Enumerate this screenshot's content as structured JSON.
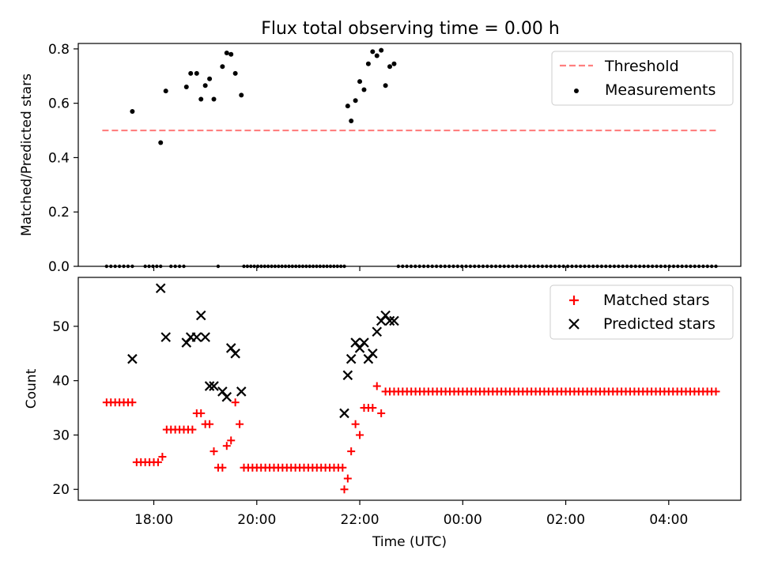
{
  "title": "Flux total observing time = 0.00 h",
  "colors": {
    "threshold": "#ff7f7f",
    "measurements": "#000000",
    "matched": "#ff0000",
    "predicted": "#000000"
  },
  "chart_data": [
    {
      "type": "scatter",
      "title": "Flux total observing time = 0.00 h",
      "xlabel": "",
      "ylabel": "Matched/Predicted stars",
      "ylim": [
        0,
        0.82
      ],
      "yticks": [
        0.0,
        0.2,
        0.4,
        0.6,
        0.8
      ],
      "ytick_labels": [
        "0.0",
        "0.2",
        "0.4",
        "0.6",
        "0.8"
      ],
      "legend_position": "top-right",
      "series": [
        {
          "name": "Threshold",
          "style": "dashed-line",
          "x": [
            "17:00",
            "04:55"
          ],
          "y": [
            0.5,
            0.5
          ]
        },
        {
          "name": "Measurements",
          "style": "dot",
          "x": [
            "17:35",
            "18:08",
            "18:14",
            "18:38",
            "18:43",
            "18:50",
            "18:55",
            "19:00",
            "19:05",
            "19:10",
            "19:20",
            "19:25",
            "19:30",
            "19:35",
            "19:42",
            "21:46",
            "21:50",
            "21:55",
            "22:00",
            "22:05",
            "22:10",
            "22:15",
            "22:20",
            "22:25",
            "22:30",
            "22:35",
            "22:40"
          ],
          "y": [
            0.57,
            0.455,
            0.645,
            0.66,
            0.71,
            0.71,
            0.615,
            0.665,
            0.69,
            0.615,
            0.735,
            0.785,
            0.78,
            0.71,
            0.63,
            0.59,
            0.535,
            0.61,
            0.68,
            0.65,
            0.745,
            0.79,
            0.775,
            0.795,
            0.665,
            0.735,
            0.745
          ]
        },
        {
          "name": "",
          "style": "dot",
          "x_ranges": [
            [
              "17:05",
              "17:35",
              7
            ],
            [
              "17:50",
              "18:08",
              5
            ],
            [
              "18:20",
              "18:35",
              4
            ],
            [
              "19:15",
              "19:15",
              1
            ],
            [
              "19:45",
              "21:42",
              30
            ],
            [
              "22:45",
              "04:55",
              76
            ]
          ],
          "y": 0
        }
      ]
    },
    {
      "type": "scatter",
      "xlabel": "Time (UTC)",
      "ylabel": "Count",
      "ylim": [
        18,
        59
      ],
      "yticks": [
        20,
        30,
        40,
        50
      ],
      "ytick_labels": [
        "20",
        "30",
        "40",
        "50"
      ],
      "xticks": [
        "18:00",
        "20:00",
        "22:00",
        "00:00",
        "02:00",
        "04:00"
      ],
      "xlim": [
        "16:32",
        "05:24"
      ],
      "legend_position": "top-right",
      "series": [
        {
          "name": "Matched stars",
          "style": "plus",
          "x": [
            "17:05",
            "17:10",
            "17:15",
            "17:20",
            "17:25",
            "17:30",
            "17:35",
            "17:40",
            "17:45",
            "17:50",
            "17:55",
            "18:00",
            "18:05",
            "18:10",
            "18:15",
            "18:20",
            "18:25",
            "18:30",
            "18:35",
            "18:40",
            "18:45",
            "18:50",
            "18:55",
            "19:00",
            "19:05",
            "19:10",
            "19:15",
            "19:20",
            "19:25",
            "19:30",
            "19:35",
            "19:40",
            "21:42",
            "21:46",
            "21:50",
            "21:55",
            "22:00",
            "22:05",
            "22:10",
            "22:15",
            "22:20",
            "22:25",
            "22:30"
          ],
          "y": [
            36,
            36,
            36,
            36,
            36,
            36,
            36,
            25,
            25,
            25,
            25,
            25,
            25,
            26,
            31,
            31,
            31,
            31,
            31,
            31,
            31,
            34,
            34,
            32,
            32,
            27,
            24,
            24,
            28,
            29,
            36,
            32,
            20,
            22,
            27,
            32,
            30,
            35,
            35,
            35,
            39,
            34,
            38
          ],
          "x_ranges": [
            [
              "19:45",
              "21:40",
              24,
              24
            ],
            [
              "22:35",
              "04:55",
              77,
              38
            ]
          ]
        },
        {
          "name": "Predicted stars",
          "style": "x",
          "x": [
            "17:35",
            "18:08",
            "18:14",
            "18:38",
            "18:43",
            "18:50",
            "18:55",
            "19:00",
            "19:05",
            "19:10",
            "19:20",
            "19:25",
            "19:30",
            "19:35",
            "19:42",
            "21:42",
            "21:46",
            "21:50",
            "21:55",
            "22:00",
            "22:05",
            "22:10",
            "22:15",
            "22:20",
            "22:25",
            "22:30",
            "22:35",
            "22:40"
          ],
          "y": [
            44,
            57,
            48,
            47,
            48,
            48,
            52,
            48,
            39,
            39,
            38,
            37,
            46,
            45,
            38,
            34,
            41,
            44,
            47,
            46,
            47,
            44,
            45,
            49,
            51,
            52,
            51,
            51
          ]
        }
      ]
    }
  ]
}
